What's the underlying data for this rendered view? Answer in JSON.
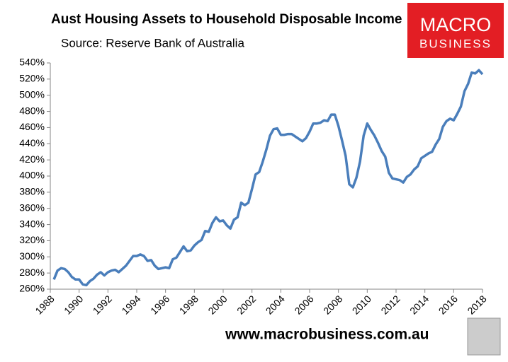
{
  "chart_data": {
    "type": "line",
    "title": "Aust Housing Assets to Household Disposable Income",
    "subtitle": "Source: Reserve Bank of Australia",
    "x": [
      1988.25,
      1988.5,
      1988.75,
      1989,
      1989.25,
      1989.5,
      1989.75,
      1990,
      1990.25,
      1990.5,
      1990.75,
      1991,
      1991.25,
      1991.5,
      1991.75,
      1992,
      1992.25,
      1992.5,
      1992.75,
      1993,
      1993.25,
      1993.5,
      1993.75,
      1994,
      1994.25,
      1994.5,
      1994.75,
      1995,
      1995.25,
      1995.5,
      1995.75,
      1996,
      1996.25,
      1996.5,
      1996.75,
      1997,
      1997.25,
      1997.5,
      1997.75,
      1998,
      1998.25,
      1998.5,
      1998.75,
      1999,
      1999.25,
      1999.5,
      1999.75,
      2000,
      2000.25,
      2000.5,
      2000.75,
      2001,
      2001.25,
      2001.5,
      2001.75,
      2002,
      2002.25,
      2002.5,
      2002.75,
      2003,
      2003.25,
      2003.5,
      2003.75,
      2004,
      2004.25,
      2004.5,
      2004.75,
      2005,
      2005.25,
      2005.5,
      2005.75,
      2006,
      2006.25,
      2006.5,
      2006.75,
      2007,
      2007.25,
      2007.5,
      2007.75,
      2008,
      2008.25,
      2008.5,
      2008.75,
      2009,
      2009.25,
      2009.5,
      2009.75,
      2010,
      2010.25,
      2010.5,
      2010.75,
      2011,
      2011.25,
      2011.5,
      2011.75,
      2012,
      2012.25,
      2012.5,
      2012.75,
      2013,
      2013.25,
      2013.5,
      2013.75,
      2014,
      2014.25,
      2014.5,
      2014.75,
      2015,
      2015.25,
      2015.5,
      2015.75,
      2016,
      2016.25,
      2016.5,
      2016.75,
      2017,
      2017.25,
      2017.5,
      2017.75,
      2018
    ],
    "values": [
      272,
      283,
      286,
      285,
      281,
      275,
      272,
      272,
      266,
      265,
      270,
      273,
      278,
      281,
      277,
      281,
      283,
      284,
      281,
      285,
      289,
      295,
      301,
      301,
      303,
      301,
      295,
      296,
      289,
      285,
      286,
      287,
      286,
      297,
      299,
      306,
      313,
      307,
      308,
      314,
      318,
      321,
      332,
      331,
      342,
      349,
      344,
      345,
      339,
      335,
      346,
      349,
      367,
      364,
      367,
      384,
      402,
      405,
      418,
      433,
      450,
      458,
      459,
      451,
      451,
      452,
      452,
      449,
      446,
      443,
      447,
      455,
      465,
      465,
      466,
      469,
      468,
      476,
      476,
      462,
      444,
      425,
      390,
      386,
      398,
      418,
      450,
      465,
      457,
      450,
      441,
      431,
      424,
      404,
      397,
      396,
      395,
      392,
      399,
      402,
      408,
      412,
      422,
      425,
      428,
      430,
      439,
      446,
      461,
      468,
      471,
      469,
      477,
      486,
      505,
      514,
      528,
      527,
      531,
      526
    ],
    "color": "#4a7ebb",
    "xlim": [
      1988,
      2018
    ],
    "xticks": [
      1988,
      1990,
      1992,
      1994,
      1996,
      1998,
      2000,
      2002,
      2004,
      2006,
      2008,
      2010,
      2012,
      2014,
      2016,
      2018
    ],
    "ylim": [
      260,
      540
    ],
    "yticks": [
      {
        "value": 260,
        "label": "260%"
      },
      {
        "value": 280,
        "label": "280%"
      },
      {
        "value": 300,
        "label": "300%"
      },
      {
        "value": 320,
        "label": "320%"
      },
      {
        "value": 340,
        "label": "340%"
      },
      {
        "value": 360,
        "label": "360%"
      },
      {
        "value": 380,
        "label": "380%"
      },
      {
        "value": 400,
        "label": "400%"
      },
      {
        "value": 420,
        "label": "420%"
      },
      {
        "value": 440,
        "label": "440%"
      },
      {
        "value": 460,
        "label": "460%"
      },
      {
        "value": 480,
        "label": "480%"
      },
      {
        "value": 500,
        "label": "500%"
      },
      {
        "value": 520,
        "label": "520%"
      },
      {
        "value": 540,
        "label": "540%"
      }
    ],
    "grid": false
  },
  "logo": {
    "line1": "MACRO",
    "line2": "BUSINESS"
  },
  "website": "www.macrobusiness.com.au"
}
